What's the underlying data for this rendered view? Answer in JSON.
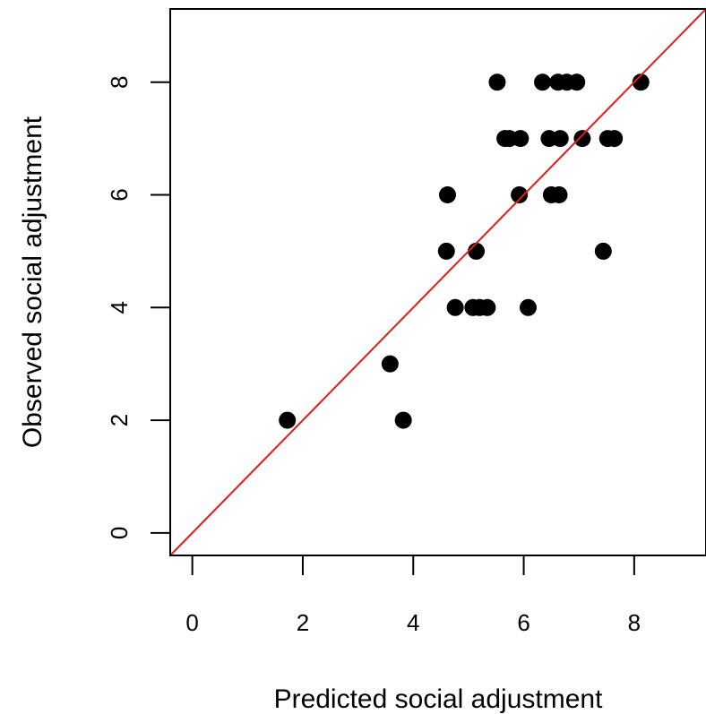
{
  "chart_data": {
    "type": "scatter",
    "title": "",
    "xlabel": "Predicted social adjustment",
    "ylabel": "Observed social adjustment",
    "xlim": [
      -0.4,
      9.3
    ],
    "ylim": [
      -0.4,
      9.3
    ],
    "x_ticks": [
      0,
      2,
      4,
      6,
      8
    ],
    "y_ticks": [
      0,
      2,
      4,
      6,
      8
    ],
    "x_tick_labels": [
      "0",
      "2",
      "4",
      "6",
      "8"
    ],
    "y_tick_labels": [
      "0",
      "2",
      "4",
      "6",
      "8"
    ],
    "grid": false,
    "legend": "none",
    "point_color": "#000000",
    "line_color": "#e41a1c",
    "reference_line": {
      "type": "identity",
      "slope": 1,
      "intercept": 0
    },
    "points": [
      {
        "x": 1.72,
        "y": 2
      },
      {
        "x": 3.58,
        "y": 3
      },
      {
        "x": 3.82,
        "y": 2
      },
      {
        "x": 4.62,
        "y": 6
      },
      {
        "x": 4.6,
        "y": 5
      },
      {
        "x": 4.76,
        "y": 4
      },
      {
        "x": 5.14,
        "y": 5
      },
      {
        "x": 5.08,
        "y": 4
      },
      {
        "x": 5.2,
        "y": 4
      },
      {
        "x": 5.34,
        "y": 4
      },
      {
        "x": 5.52,
        "y": 8
      },
      {
        "x": 5.66,
        "y": 7
      },
      {
        "x": 5.74,
        "y": 7
      },
      {
        "x": 5.94,
        "y": 7
      },
      {
        "x": 5.92,
        "y": 6
      },
      {
        "x": 6.08,
        "y": 4
      },
      {
        "x": 6.34,
        "y": 8
      },
      {
        "x": 6.46,
        "y": 7
      },
      {
        "x": 6.5,
        "y": 6
      },
      {
        "x": 6.64,
        "y": 6
      },
      {
        "x": 6.62,
        "y": 8
      },
      {
        "x": 6.66,
        "y": 7
      },
      {
        "x": 6.78,
        "y": 8
      },
      {
        "x": 6.96,
        "y": 8
      },
      {
        "x": 7.06,
        "y": 7
      },
      {
        "x": 7.44,
        "y": 5
      },
      {
        "x": 7.52,
        "y": 7
      },
      {
        "x": 7.64,
        "y": 7
      },
      {
        "x": 8.12,
        "y": 8
      }
    ]
  }
}
